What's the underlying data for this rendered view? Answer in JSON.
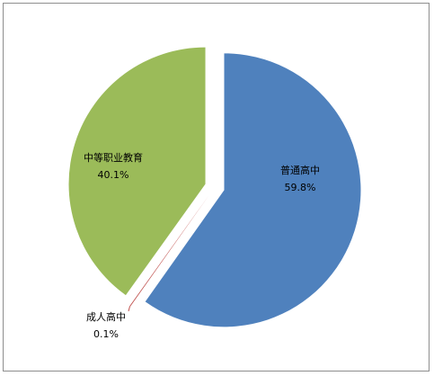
{
  "chart_data": {
    "type": "pie",
    "slices": [
      {
        "name": "普通高中",
        "value": 59.8,
        "label": "59.8%",
        "color": "#4f81bd"
      },
      {
        "name": "成人高中",
        "value": 0.1,
        "label": "0.1%",
        "color": "#c0504d"
      },
      {
        "name": "中等职业教育",
        "value": 40.1,
        "label": "40.1%",
        "color": "#9bbb59"
      }
    ],
    "title": "",
    "legend": "none",
    "exploded": true
  }
}
